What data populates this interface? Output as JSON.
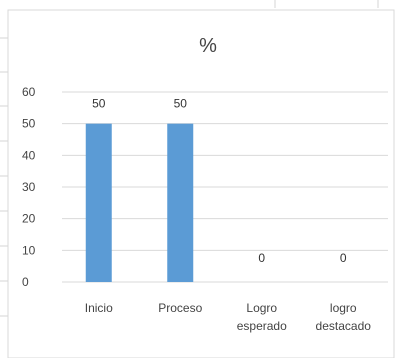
{
  "chart_data": {
    "type": "bar",
    "title": "%",
    "categories": [
      [
        "Inicio"
      ],
      [
        "Proceso"
      ],
      [
        "Logro",
        "esperado"
      ],
      [
        "logro",
        "destacado"
      ]
    ],
    "values": [
      50,
      50,
      0,
      0
    ],
    "ylim": [
      0,
      60
    ],
    "yticks": [
      0,
      10,
      20,
      30,
      40,
      50,
      60
    ],
    "grid": true,
    "bar_color": "#5b9bd5",
    "data_labels": [
      "50",
      "50",
      "0",
      "0"
    ]
  }
}
